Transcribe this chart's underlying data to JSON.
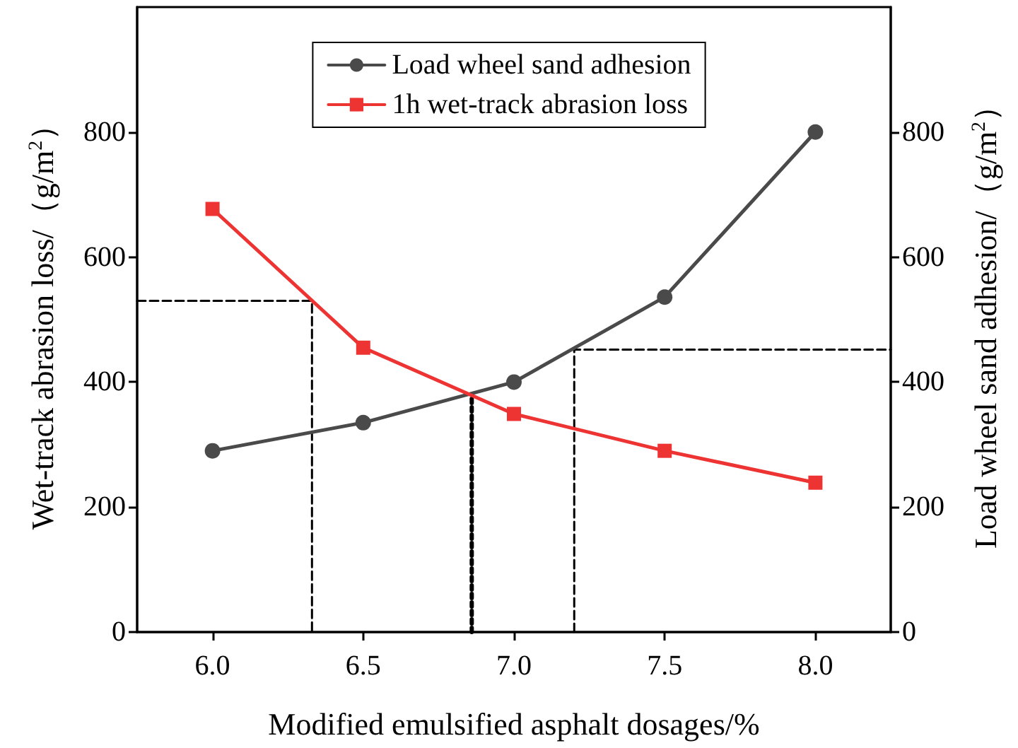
{
  "chart_data": {
    "type": "line",
    "xlabel": "Modified emulsified asphalt dosages/%",
    "ylabel": "Wet-track abrasion loss/（g/m$^{2}$）",
    "y2label": "Load wheel sand adhesion/（g/m$^{2}$）",
    "x": [
      6.0,
      6.5,
      7.0,
      7.5,
      8.0
    ],
    "series": [
      {
        "name": "Load wheel sand adhesion",
        "color": "#4a4a4a",
        "marker": "circle",
        "values": [
          290,
          335,
          400,
          536,
          800
        ]
      },
      {
        "name": "1h wet-track abrasion loss",
        "color": "#ee3333",
        "marker": "square",
        "values": [
          677,
          455,
          349,
          290,
          239
        ]
      },
      {
        "color": "#000000",
        "line_style": "dashed",
        "marker": "none",
        "x": [
          5.75,
          6.33,
          6.33
        ],
        "values": [
          530,
          530,
          0
        ]
      },
      {
        "color": "#000000",
        "line_style": "dotted",
        "marker": "none",
        "x": [
          6.86,
          6.86
        ],
        "values": [
          0,
          380
        ]
      },
      {
        "color": "#000000",
        "line_style": "dashed",
        "marker": "none",
        "x": [
          7.2,
          7.2,
          8.25
        ],
        "values": [
          0,
          452,
          452
        ]
      }
    ],
    "xlim": [
      5.75,
      8.25
    ],
    "xticks": [
      {
        "value": 6.0,
        "label": "6.0"
      },
      {
        "value": 6.5,
        "label": "6.5"
      },
      {
        "value": 7.0,
        "label": "7.0"
      },
      {
        "value": 7.5,
        "label": "7.5"
      },
      {
        "value": 8.0,
        "label": "8.0"
      }
    ],
    "ylim": [
      0,
      1000
    ],
    "yticks": [
      0,
      200,
      400,
      600,
      800
    ],
    "y2lim": [
      0,
      1000
    ],
    "y2ticks": [
      0,
      200,
      400,
      600,
      800
    ],
    "legend": "top",
    "grid": false,
    "line_style": "solid"
  }
}
